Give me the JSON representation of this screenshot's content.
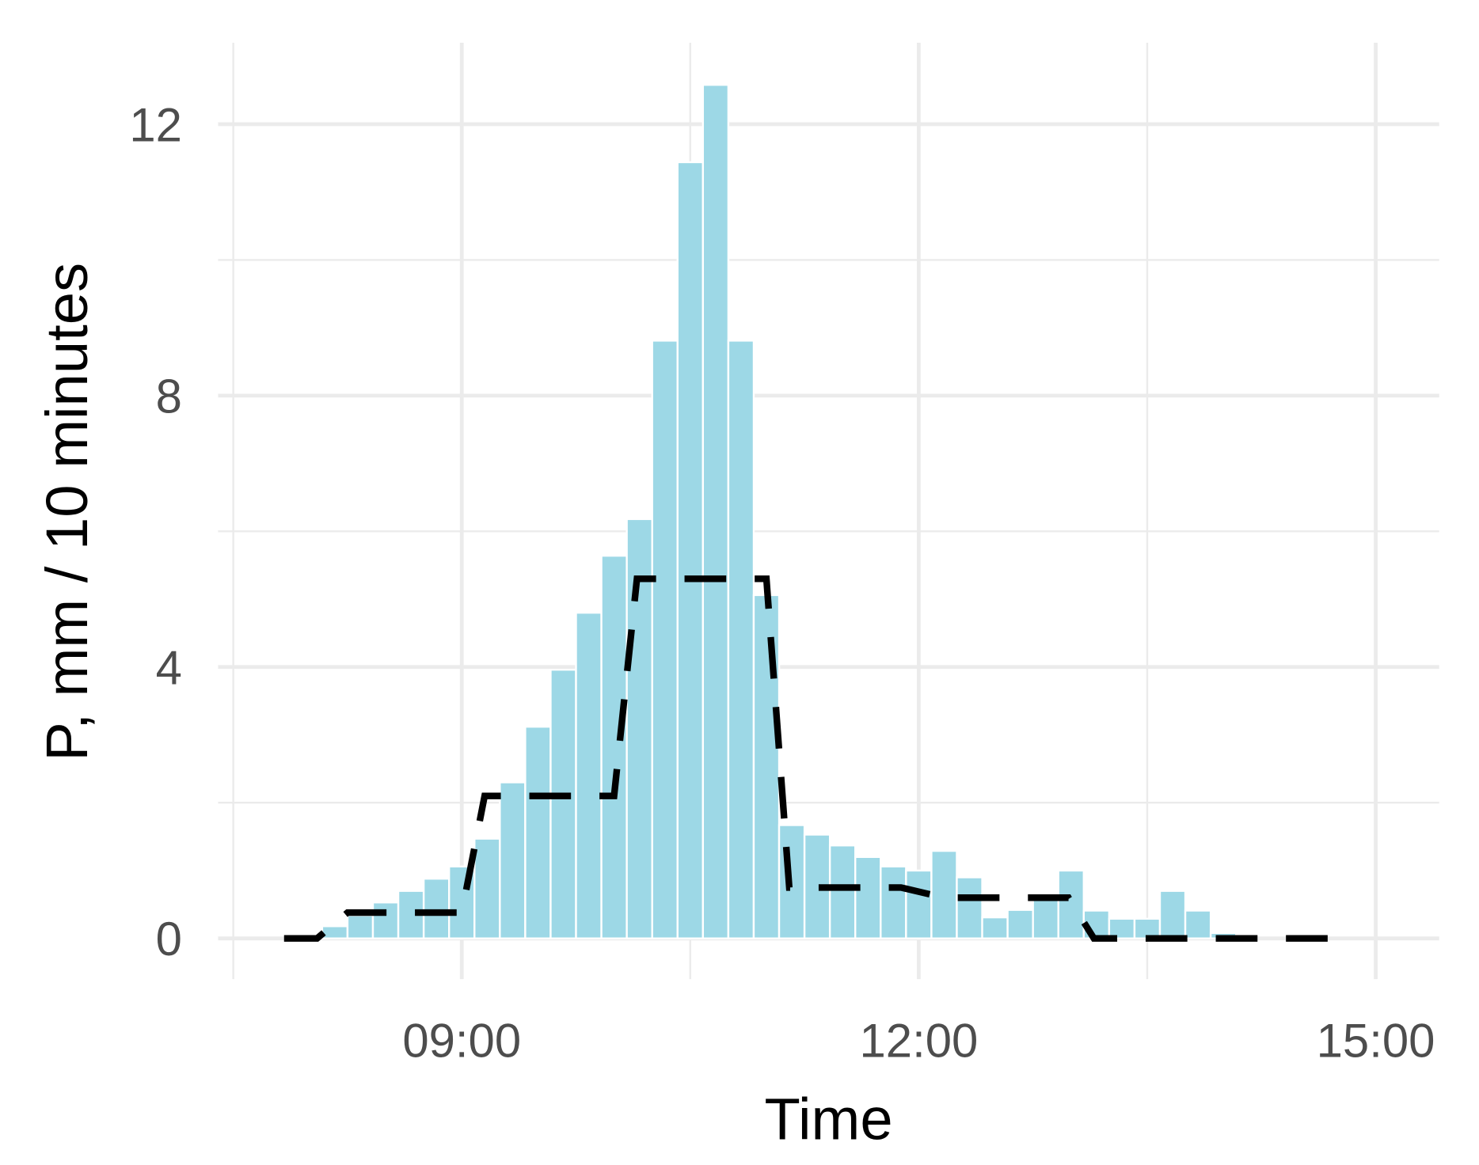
{
  "chart_data": {
    "type": "histogram",
    "x_label": "Time",
    "y_label": "P, mm / 10 minutes",
    "bins": [
      485,
      495,
      505,
      515,
      525,
      535,
      545,
      555,
      565,
      575,
      585,
      595,
      605,
      615,
      625,
      635,
      645,
      655,
      665,
      675,
      685,
      695,
      705,
      715,
      725,
      735,
      745,
      755,
      765,
      775,
      785,
      795,
      805,
      815,
      825,
      835,
      845
    ],
    "values": [
      0.18,
      0.34,
      0.53,
      0.7,
      0.88,
      1.06,
      1.47,
      2.3,
      3.12,
      3.96,
      4.8,
      5.64,
      6.18,
      8.81,
      11.44,
      12.58,
      8.81,
      5.06,
      1.67,
      1.53,
      1.37,
      1.2,
      1.06,
      1.0,
      1.29,
      0.9,
      0.31,
      0.42,
      0.62,
      1.0,
      0.41,
      0.29,
      0.29,
      0.7,
      0.41,
      0.08
    ],
    "color": "#9dd8e6",
    "overlay": {
      "type": "line",
      "color": "#000000",
      "dashed": true,
      "x": [
        470,
        483,
        495,
        540,
        549,
        600,
        609,
        660,
        669,
        713,
        730,
        779,
        789,
        884
      ],
      "values": [
        0,
        0,
        0.38,
        0.38,
        2.1,
        2.1,
        5.3,
        5.3,
        0.75,
        0.75,
        0.6,
        0.6,
        0,
        0
      ]
    },
    "xlim": [
      444,
      925
    ],
    "ylim": [
      -0.6,
      13.2
    ],
    "xticks": [
      {
        "value": 540,
        "label": "09:00"
      },
      {
        "value": 720,
        "label": "12:00"
      },
      {
        "value": 900,
        "label": "15:00"
      }
    ],
    "yticks": [
      0,
      4,
      8,
      12
    ],
    "xminor": [
      450,
      630,
      810
    ],
    "yminor": [
      2,
      6,
      10
    ],
    "grid": true
  }
}
